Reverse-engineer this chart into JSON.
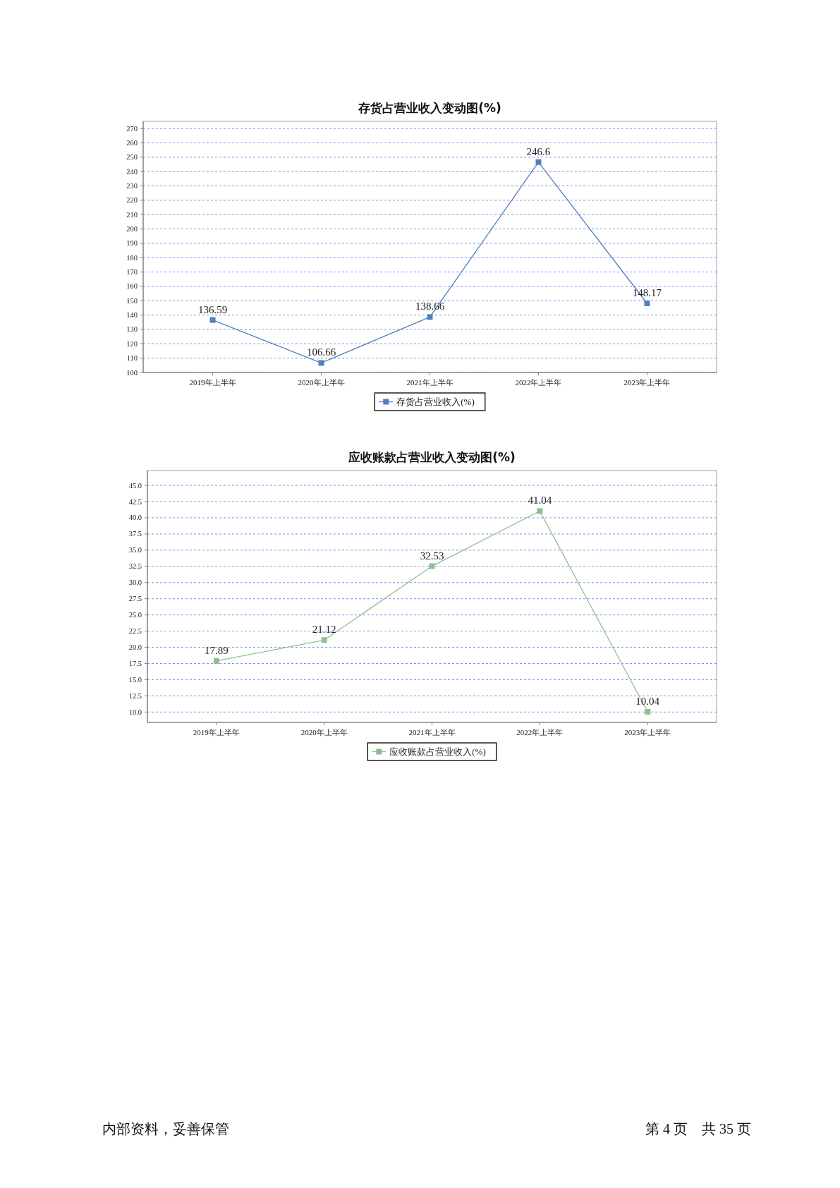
{
  "chart_data": [
    {
      "type": "line",
      "title": "存货占营业收入变动图(%)",
      "categories": [
        "2019年上半年",
        "2020年上半年",
        "2021年上半年",
        "2022年上半年",
        "2023年上半年"
      ],
      "series": [
        {
          "name": "存货占营业收入(%)",
          "color": "#4f81bd",
          "values": [
            136.59,
            106.66,
            138.66,
            246.6,
            148.17
          ]
        }
      ],
      "ylim": [
        100,
        275
      ],
      "yticks": [
        100,
        110,
        120,
        130,
        140,
        150,
        160,
        170,
        180,
        190,
        200,
        210,
        220,
        230,
        240,
        250,
        260,
        270
      ],
      "grid": "y",
      "legend": "bottom",
      "marker": "square",
      "line_style": "solid",
      "data_labels": true
    },
    {
      "type": "line",
      "title": "应收账款占营业收入变动图(%)",
      "categories": [
        "2019年上半年",
        "2020年上半年",
        "2021年上半年",
        "2022年上半年",
        "2023年上半年"
      ],
      "series": [
        {
          "name": "应收账款占营业收入(%)",
          "color": "#8fbf8f",
          "values": [
            17.89,
            21.12,
            32.53,
            41.04,
            10.04
          ]
        }
      ],
      "ylim": [
        8.4,
        47.3
      ],
      "yticks": [
        {
          "value": 10,
          "label": "10.0"
        },
        12.5,
        {
          "value": 15,
          "label": "15.0"
        },
        17.5,
        {
          "value": 20,
          "label": "20.0"
        },
        22.5,
        {
          "value": 25,
          "label": "25.0"
        },
        27.5,
        {
          "value": 30,
          "label": "30.0"
        },
        32.5,
        {
          "value": 35,
          "label": "35.0"
        },
        37.5,
        {
          "value": 40,
          "label": "40.0"
        },
        42.5,
        {
          "value": 45,
          "label": "45.0"
        }
      ],
      "grid": "y",
      "legend": "bottom",
      "marker": "square",
      "line_style": "solid",
      "data_labels": true,
      "annotations": [
        "内部资料，妥善保管",
        "第 4 页　共 35 页"
      ]
    }
  ]
}
